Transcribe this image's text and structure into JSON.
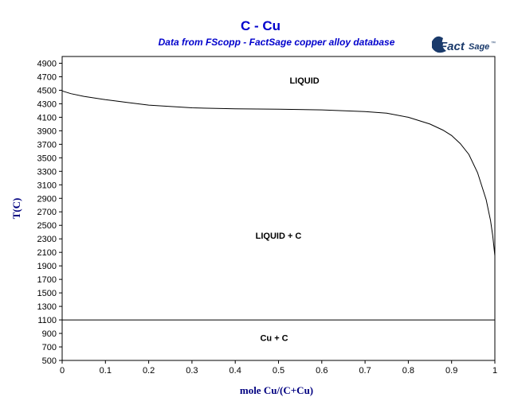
{
  "chart_data": {
    "type": "line",
    "title": "C - Cu",
    "subtitle": "Data from FScopp - FactSage copper alloy database",
    "xlabel": "mole Cu/(C+Cu)",
    "ylabel": "T(C)",
    "xlim": [
      0,
      1
    ],
    "ylim": [
      500,
      5000
    ],
    "x_ticks": [
      0,
      0.1,
      0.2,
      0.3,
      0.4,
      0.5,
      0.6,
      0.7,
      0.8,
      0.9,
      1
    ],
    "x_tick_labels": [
      "0",
      "0.1",
      "0.2",
      "0.3",
      "0.4",
      "0.5",
      "0.6",
      "0.7",
      "0.8",
      "0.9",
      "1"
    ],
    "y_ticks": [
      500,
      700,
      900,
      1100,
      1300,
      1500,
      1700,
      1900,
      2100,
      2300,
      2500,
      2700,
      2900,
      3100,
      3300,
      3500,
      3700,
      3900,
      4100,
      4300,
      4500,
      4700,
      4900
    ],
    "y_tick_labels": [
      "500",
      "700",
      "900",
      "1100",
      "1300",
      "1500",
      "1700",
      "1900",
      "2100",
      "2300",
      "2500",
      "2700",
      "2900",
      "3100",
      "3300",
      "3500",
      "3700",
      "3900",
      "4100",
      "4300",
      "4500",
      "4700",
      "4900"
    ],
    "grid": false,
    "series": [
      {
        "x": [
          0,
          0.02,
          0.05,
          0.1,
          0.15,
          0.2,
          0.3,
          0.4,
          0.5,
          0.6,
          0.7,
          0.75,
          0.8,
          0.85,
          0.88,
          0.9,
          0.92,
          0.94,
          0.96,
          0.98,
          0.99,
          0.995,
          1.0
        ],
        "y": [
          4490,
          4450,
          4410,
          4360,
          4320,
          4280,
          4240,
          4225,
          4220,
          4210,
          4185,
          4160,
          4100,
          4000,
          3910,
          3830,
          3710,
          3550,
          3280,
          2880,
          2570,
          2350,
          2050
        ]
      },
      {
        "x": [
          0,
          1
        ],
        "y": [
          1100,
          1100
        ]
      }
    ],
    "annotations": [
      {
        "text": "LIQUID",
        "x": 0.56,
        "y": 4600
      },
      {
        "text": "LIQUID + C",
        "x": 0.5,
        "y": 2300
      },
      {
        "text": "Cu + C",
        "x": 0.49,
        "y": 790
      }
    ],
    "colors": {
      "title": "#0000cc",
      "axis_label": "#000080",
      "frame": "#000000",
      "logo": "#1a3a6b"
    }
  },
  "logo": {
    "brand": "Fact",
    "suffix": "Sage",
    "mark": "™"
  }
}
